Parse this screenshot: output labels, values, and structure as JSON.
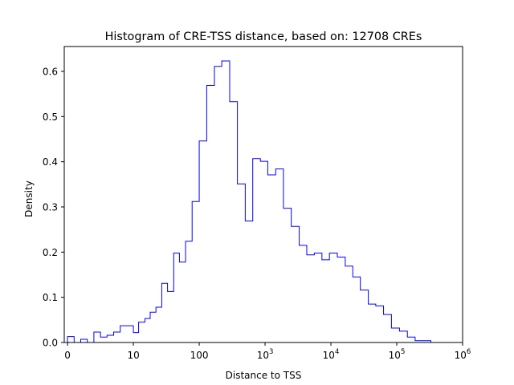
{
  "chart_data": {
    "type": "histogram",
    "title": "Histogram of CRE-TSS distance, based on: 12708 CREs",
    "xlabel": "Distance to TSS",
    "ylabel": "Density",
    "x_scale": "symlog",
    "xlim": [
      -0.5,
      1000000
    ],
    "ylim": [
      0,
      0.655
    ],
    "x_ticks": [
      {
        "value": 0,
        "label": "0"
      },
      {
        "value": 10,
        "label": "10"
      },
      {
        "value": 100,
        "label": "100"
      },
      {
        "value": 1000,
        "label": "10",
        "exp": "3"
      },
      {
        "value": 10000,
        "label": "10",
        "exp": "4"
      },
      {
        "value": 100000,
        "label": "10",
        "exp": "5"
      },
      {
        "value": 1000000,
        "label": "10",
        "exp": "6"
      }
    ],
    "y_ticks": [
      {
        "value": 0.0,
        "label": "0.0"
      },
      {
        "value": 0.1,
        "label": "0.1"
      },
      {
        "value": 0.2,
        "label": "0.2"
      },
      {
        "value": 0.3,
        "label": "0.3"
      },
      {
        "value": 0.4,
        "label": "0.4"
      },
      {
        "value": 0.5,
        "label": "0.5"
      },
      {
        "value": 0.6,
        "label": "0.6"
      }
    ],
    "grid": false,
    "line_color": "#0000ff",
    "bin_edges": [
      0,
      1,
      2,
      3,
      4,
      5,
      6,
      7,
      8,
      10,
      12,
      15,
      18,
      22,
      27,
      33,
      41,
      50,
      62,
      78,
      100,
      130,
      170,
      220,
      290,
      380,
      500,
      650,
      850,
      1100,
      1450,
      1900,
      2500,
      3300,
      4300,
      5600,
      7300,
      9500,
      12500,
      16500,
      21500,
      28000,
      37000,
      48000,
      63000,
      83000,
      110000,
      145000,
      190000,
      250000,
      330000,
      430000
    ],
    "values": [
      0.013,
      0.0,
      0.007,
      0.0,
      0.023,
      0.012,
      0.016,
      0.023,
      0.037,
      0.022,
      0.045,
      0.053,
      0.067,
      0.078,
      0.131,
      0.113,
      0.198,
      0.178,
      0.224,
      0.312,
      0.446,
      0.569,
      0.611,
      0.623,
      0.533,
      0.351,
      0.269,
      0.407,
      0.401,
      0.371,
      0.384,
      0.297,
      0.257,
      0.215,
      0.194,
      0.198,
      0.183,
      0.198,
      0.189,
      0.169,
      0.145,
      0.116,
      0.085,
      0.081,
      0.062,
      0.032,
      0.025,
      0.012,
      0.004,
      0.004,
      0.0
    ]
  }
}
